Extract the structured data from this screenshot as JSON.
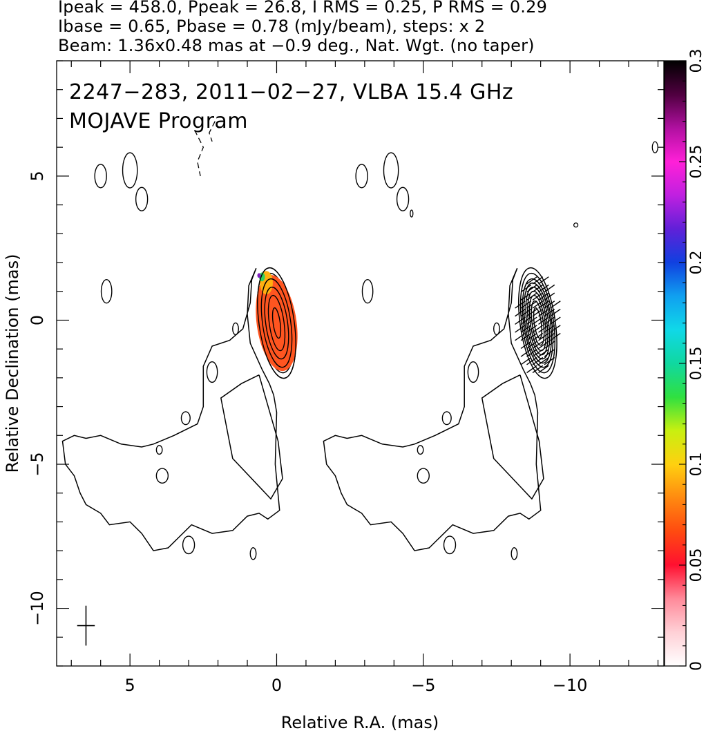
{
  "header": {
    "line1": "Ipeak = 458.0, Ppeak = 26.8, I RMS = 0.25, P RMS = 0.29",
    "line2": "Ibase = 0.65, Pbase = 0.78 (mJy/beam), steps: x 2",
    "line3": "Beam: 1.36x0.48 mas at −0.9 deg., Nat. Wgt. (no taper)"
  },
  "overlay": {
    "line1": "2247−283, 2011−02−27, VLBA 15.4 GHz",
    "line2": "MOJAVE Program"
  },
  "chart_data": {
    "type": "contour",
    "xlabel": "Relative R.A. (mas)",
    "ylabel": "Relative Declination (mas)",
    "xlim": [
      7.5,
      -13.2
    ],
    "ylim": [
      -12,
      9
    ],
    "x_ticks": [
      5,
      0,
      -5,
      -10
    ],
    "x_tick_labels": [
      "5",
      "0",
      "−5",
      "−10"
    ],
    "y_ticks": [
      5,
      0,
      -5,
      -10
    ],
    "y_tick_labels": [
      "5",
      "0",
      "−5",
      "−10"
    ],
    "colorbar": {
      "min": 0,
      "max": 0.3,
      "ticks": [
        0,
        0.05,
        0.1,
        0.15,
        0.2,
        0.25,
        0.3
      ],
      "tick_labels": [
        "0",
        "0.05",
        "0.1",
        "0.15",
        "0.2",
        "0.25",
        "0.3"
      ],
      "colors": [
        "#ffffff",
        "#ffd0d6",
        "#ff8a9a",
        "#ff1030",
        "#ff4a10",
        "#ff8a10",
        "#ffd010",
        "#c8f010",
        "#30e040",
        "#10d8a0",
        "#10d8e8",
        "#10a0f0",
        "#1040e0",
        "#6020d8",
        "#c020e0",
        "#ff20d8",
        "#b010a0",
        "#500040",
        "#000000"
      ]
    },
    "panels": [
      {
        "name": "",
        "core_ra": 0,
        "core_dec": 0
      },
      {
        "name": "",
        "core_ra": -8.9,
        "core_dec": 0
      }
    ],
    "stats": {
      "Ipeak_mJy_beam": 458.0,
      "Ppeak_mJy_beam": 26.8,
      "I_RMS": 0.25,
      "P_RMS": 0.29,
      "Ibase": 0.65,
      "Pbase": 0.78,
      "contour_step_factor": 2
    },
    "beam": {
      "major_mas": 1.36,
      "minor_mas": 0.48,
      "pa_deg": -0.9,
      "weighting": "Nat. Wgt. (no taper)"
    },
    "contour_levels_count": 9,
    "grid": false
  }
}
